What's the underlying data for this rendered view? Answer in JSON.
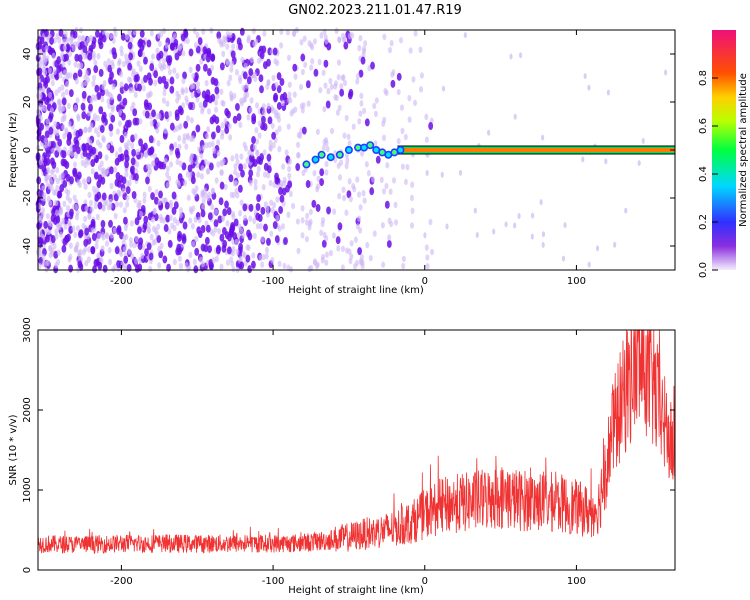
{
  "title": "GN02.2023.211.01.47.R19",
  "colors": {
    "snr_line": "#f03232",
    "track_line": "#000000",
    "scatter_main": "#6a0ee8",
    "scatter_faint": "#cfb6f5"
  },
  "chart_data": [
    {
      "type": "heatmap",
      "xlabel": "Height of straight line (km)",
      "ylabel": "Frequency (Hz)",
      "xlim": [
        -255,
        165
      ],
      "ylim": [
        -50,
        50
      ],
      "x_ticks": [
        -200,
        -100,
        0,
        100
      ],
      "y_ticks": [
        -40,
        -20,
        0,
        20,
        40
      ],
      "grid": false,
      "description_series": [
        {
          "name": "",
          "points": [
            [
              -78,
              -6
            ],
            [
              -72,
              -4
            ],
            [
              -68,
              -2
            ],
            [
              -62,
              -3
            ],
            [
              -56,
              -2
            ],
            [
              -50,
              0
            ],
            [
              -44,
              1
            ],
            [
              -40,
              1
            ],
            [
              -36,
              2
            ],
            [
              -32,
              0
            ],
            [
              -28,
              -1
            ],
            [
              -24,
              -2
            ],
            [
              -20,
              -1
            ],
            [
              -16,
              0
            ],
            [
              0,
              0
            ],
            [
              50,
              0
            ],
            [
              100,
              0
            ],
            [
              165,
              0
            ]
          ]
        }
      ],
      "colorbar": {
        "label": "Normalized spectral amplitude",
        "ticks": [
          "0.0",
          "0.2",
          "0.4",
          "0.6",
          "0.8"
        ],
        "range": [
          0,
          1
        ]
      }
    },
    {
      "type": "line",
      "xlabel": "Height of straight line (km)",
      "ylabel": "SNR (10 * v/v)",
      "xlim": [
        -255,
        165
      ],
      "ylim": [
        0,
        3000
      ],
      "x_ticks": [
        -200,
        -100,
        0,
        100
      ],
      "y_ticks": [
        0,
        1000,
        2000,
        3000
      ],
      "grid": false,
      "series": [
        {
          "name": "",
          "x": [
            -255,
            -240,
            -220,
            -200,
            -180,
            -160,
            -140,
            -120,
            -100,
            -80,
            -60,
            -50,
            -40,
            -30,
            -20,
            -10,
            0,
            10,
            20,
            30,
            40,
            50,
            60,
            70,
            80,
            90,
            100,
            110,
            115,
            120,
            125,
            130,
            135,
            140,
            145,
            150,
            155,
            160,
            165
          ],
          "y": [
            330,
            320,
            320,
            330,
            330,
            330,
            330,
            330,
            330,
            340,
            380,
            410,
            450,
            480,
            520,
            580,
            700,
            790,
            830,
            850,
            880,
            920,
            880,
            860,
            860,
            830,
            780,
            720,
            820,
            1380,
            1800,
            2100,
            2350,
            2600,
            2550,
            2300,
            2000,
            1700,
            1400
          ]
        }
      ]
    }
  ]
}
